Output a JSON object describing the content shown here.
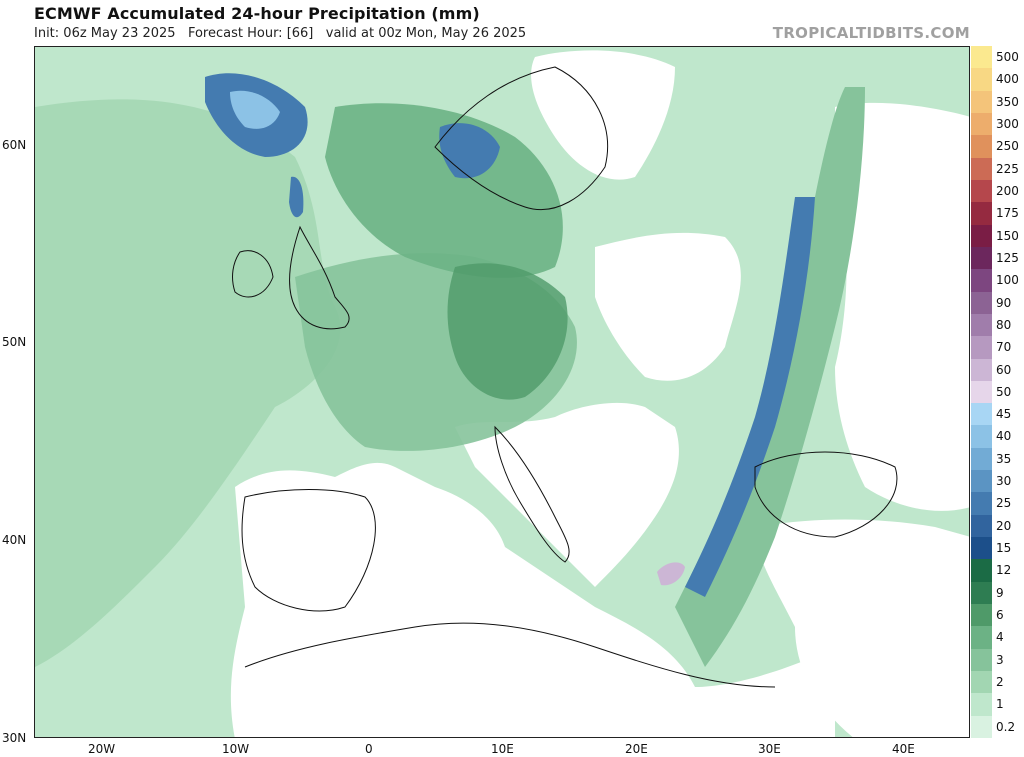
{
  "header": {
    "title": "ECMWF Accumulated 24-hour Precipitation (mm)",
    "subtitle": "Init: 06z May 23 2025   Forecast Hour: [66]   valid at 00z Mon, May 26 2025",
    "brand": "TROPICALTIDBITS.COM"
  },
  "axes": {
    "lat_labels": [
      "60N",
      "50N",
      "40N",
      "30N"
    ],
    "lon_labels": [
      "20W",
      "10W",
      "0",
      "10E",
      "20E",
      "30E",
      "40E"
    ]
  },
  "legend": {
    "unit": "mm",
    "entries": [
      {
        "label": "500",
        "color": "#fbe98f"
      },
      {
        "label": "400",
        "color": "#f8d884"
      },
      {
        "label": "350",
        "color": "#f4c47a"
      },
      {
        "label": "300",
        "color": "#edad6c"
      },
      {
        "label": "250",
        "color": "#e0915c"
      },
      {
        "label": "225",
        "color": "#cc6b55"
      },
      {
        "label": "200",
        "color": "#b5474c"
      },
      {
        "label": "175",
        "color": "#952a40"
      },
      {
        "label": "150",
        "color": "#7a1d45"
      },
      {
        "label": "125",
        "color": "#6c275d"
      },
      {
        "label": "100",
        "color": "#7d4680"
      },
      {
        "label": "90",
        "color": "#8c6394"
      },
      {
        "label": "80",
        "color": "#a07dab"
      },
      {
        "label": "70",
        "color": "#b699c0"
      },
      {
        "label": "60",
        "color": "#ccb6d5"
      },
      {
        "label": "50",
        "color": "#e6d6ea"
      },
      {
        "label": "45",
        "color": "#a8d6f4"
      },
      {
        "label": "40",
        "color": "#8cc2e6"
      },
      {
        "label": "35",
        "color": "#72abd5"
      },
      {
        "label": "30",
        "color": "#5b94c3"
      },
      {
        "label": "25",
        "color": "#447bb0"
      },
      {
        "label": "20",
        "color": "#31649e"
      },
      {
        "label": "15",
        "color": "#1c4f8a"
      },
      {
        "label": "12",
        "color": "#1b6b45"
      },
      {
        "label": "9",
        "color": "#2e7d52"
      },
      {
        "label": "6",
        "color": "#4f9a69"
      },
      {
        "label": "4",
        "color": "#6cb285"
      },
      {
        "label": "3",
        "color": "#86c39b"
      },
      {
        "label": "2",
        "color": "#a2d6b2"
      },
      {
        "label": "1",
        "color": "#bfe7cc"
      },
      {
        "label": "0.2",
        "color": "#d9f2e1"
      }
    ]
  },
  "map": {
    "colors": {
      "ocean_light": "#bfe7cc",
      "ocean": "#a2d6b2",
      "land_dry": "#ffffff",
      "border": "#111111"
    }
  }
}
